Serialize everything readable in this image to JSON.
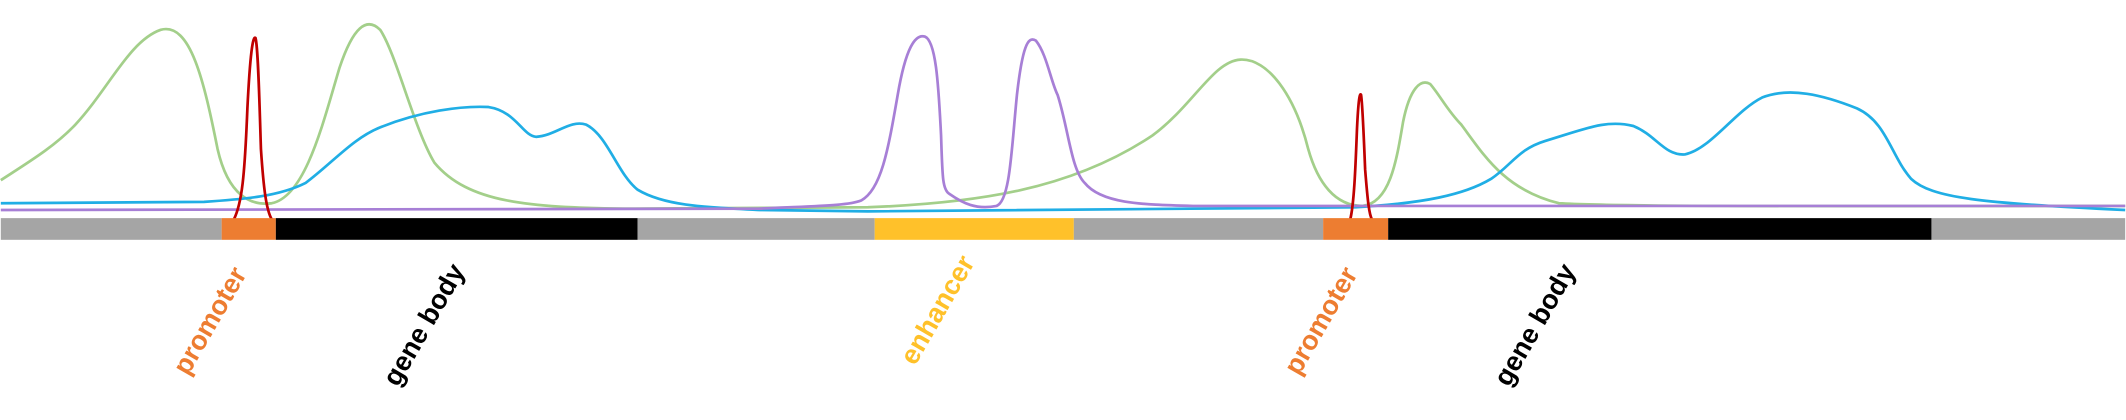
{
  "regions": [
    {
      "label": "promoter"
    },
    {
      "label": "gene body"
    },
    {
      "label": "enhancer"
    },
    {
      "label": "promoter"
    },
    {
      "label": "gene body"
    }
  ]
}
